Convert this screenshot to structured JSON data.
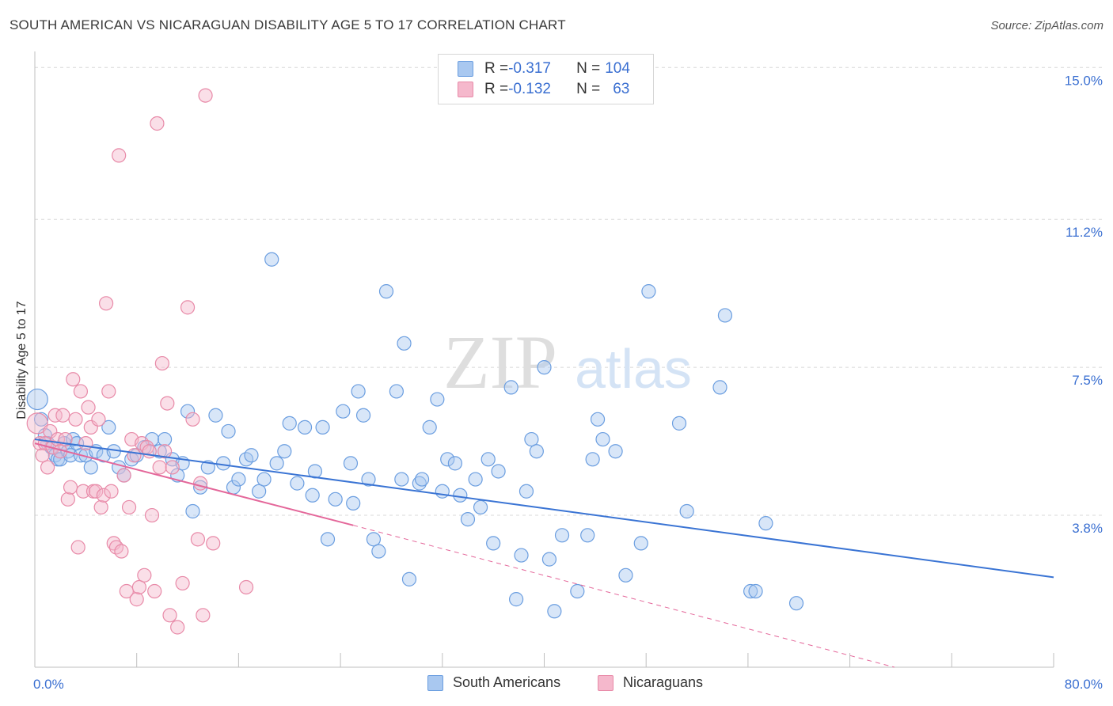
{
  "title": "SOUTH AMERICAN VS NICARAGUAN DISABILITY AGE 5 TO 17 CORRELATION CHART",
  "source": "Source: ZipAtlas.com",
  "watermark": {
    "zip": "ZIP",
    "atlas": "atlas"
  },
  "colors": {
    "blue_fill": "#a9c8f0",
    "blue_stroke": "#6b9ee0",
    "blue_line": "#3a74d4",
    "pink_fill": "#f5b8cc",
    "pink_stroke": "#e88aa8",
    "pink_line": "#e4679a",
    "tick_label": "#3a6fd1",
    "grid": "#d8d8d8"
  },
  "legend": {
    "rows": [
      {
        "r_label": "R = ",
        "r_value": "-0.317",
        "n_label": "N = ",
        "n_value": "104"
      },
      {
        "r_label": "R = ",
        "r_value": "-0.132",
        "n_label": "N = ",
        "n_value": "63"
      }
    ]
  },
  "bottom_legend": [
    "South Americans",
    "Nicaraguans"
  ],
  "chart_data": {
    "type": "scatter",
    "title": "SOUTH AMERICAN VS NICARAGUAN DISABILITY AGE 5 TO 17 CORRELATION CHART",
    "xlabel": "",
    "ylabel": "Disability Age 5 to 17",
    "xlim": [
      0,
      80
    ],
    "ylim": [
      0,
      15.5
    ],
    "x_tick_labels": [
      "0.0%",
      "80.0%"
    ],
    "y_tick_labels": [
      "3.8%",
      "7.5%",
      "11.2%",
      "15.0%"
    ],
    "y_ticks": [
      3.8,
      7.5,
      11.2,
      15.0
    ],
    "grid": true,
    "legend_position": "top-center",
    "series": [
      {
        "name": "South Americans",
        "points": [
          [
            0.2,
            6.7
          ],
          [
            0.5,
            6.2
          ],
          [
            0.8,
            5.8
          ],
          [
            1.0,
            5.6
          ],
          [
            1.3,
            5.5
          ],
          [
            1.6,
            5.3
          ],
          [
            1.8,
            5.2
          ],
          [
            2.0,
            5.2
          ],
          [
            2.3,
            5.6
          ],
          [
            2.6,
            5.4
          ],
          [
            2.8,
            5.3
          ],
          [
            3.0,
            5.7
          ],
          [
            3.3,
            5.6
          ],
          [
            3.6,
            5.3
          ],
          [
            4.0,
            5.3
          ],
          [
            4.4,
            5.0
          ],
          [
            4.8,
            5.4
          ],
          [
            5.4,
            5.3
          ],
          [
            5.8,
            6.0
          ],
          [
            6.2,
            5.4
          ],
          [
            6.6,
            5.0
          ],
          [
            7.0,
            4.8
          ],
          [
            7.6,
            5.2
          ],
          [
            8.0,
            5.3
          ],
          [
            8.6,
            5.5
          ],
          [
            9.2,
            5.7
          ],
          [
            9.8,
            5.4
          ],
          [
            10.2,
            5.7
          ],
          [
            10.8,
            5.2
          ],
          [
            11.2,
            4.8
          ],
          [
            11.6,
            5.1
          ],
          [
            12.0,
            6.4
          ],
          [
            12.4,
            3.9
          ],
          [
            13.0,
            4.5
          ],
          [
            13.6,
            5.0
          ],
          [
            14.2,
            6.3
          ],
          [
            14.8,
            5.1
          ],
          [
            15.2,
            5.9
          ],
          [
            15.6,
            4.5
          ],
          [
            16.0,
            4.7
          ],
          [
            16.6,
            5.2
          ],
          [
            17.0,
            5.3
          ],
          [
            17.6,
            4.4
          ],
          [
            18.0,
            4.7
          ],
          [
            18.6,
            10.2
          ],
          [
            19.0,
            5.1
          ],
          [
            19.6,
            5.4
          ],
          [
            20.0,
            6.1
          ],
          [
            20.6,
            4.6
          ],
          [
            21.2,
            6.0
          ],
          [
            21.8,
            4.3
          ],
          [
            22.0,
            4.9
          ],
          [
            22.6,
            6.0
          ],
          [
            23.0,
            3.2
          ],
          [
            23.6,
            4.2
          ],
          [
            24.2,
            6.4
          ],
          [
            24.8,
            5.1
          ],
          [
            25.0,
            4.1
          ],
          [
            25.4,
            6.9
          ],
          [
            25.8,
            6.3
          ],
          [
            26.2,
            4.7
          ],
          [
            26.6,
            3.2
          ],
          [
            27.0,
            2.9
          ],
          [
            27.6,
            9.4
          ],
          [
            28.4,
            6.9
          ],
          [
            28.8,
            4.7
          ],
          [
            29.0,
            8.1
          ],
          [
            29.4,
            2.2
          ],
          [
            30.2,
            4.6
          ],
          [
            30.4,
            4.7
          ],
          [
            31.0,
            6.0
          ],
          [
            31.6,
            6.7
          ],
          [
            32.0,
            4.4
          ],
          [
            32.4,
            5.2
          ],
          [
            33.0,
            5.1
          ],
          [
            33.4,
            4.3
          ],
          [
            34.0,
            3.7
          ],
          [
            34.6,
            4.7
          ],
          [
            35.0,
            4.0
          ],
          [
            35.6,
            5.2
          ],
          [
            36.0,
            3.1
          ],
          [
            36.4,
            4.9
          ],
          [
            37.4,
            7.0
          ],
          [
            37.8,
            1.7
          ],
          [
            38.2,
            2.8
          ],
          [
            38.6,
            4.4
          ],
          [
            39.0,
            5.7
          ],
          [
            39.4,
            5.4
          ],
          [
            40.0,
            7.5
          ],
          [
            40.4,
            2.7
          ],
          [
            40.8,
            1.4
          ],
          [
            41.4,
            3.3
          ],
          [
            42.6,
            1.9
          ],
          [
            43.4,
            3.3
          ],
          [
            43.8,
            5.2
          ],
          [
            44.2,
            6.2
          ],
          [
            44.6,
            5.7
          ],
          [
            45.6,
            5.4
          ],
          [
            46.4,
            2.3
          ],
          [
            47.6,
            3.1
          ],
          [
            48.2,
            9.4
          ],
          [
            50.6,
            6.1
          ],
          [
            51.2,
            3.9
          ],
          [
            53.8,
            7.0
          ],
          [
            54.2,
            8.8
          ],
          [
            56.2,
            1.9
          ],
          [
            56.6,
            1.9
          ],
          [
            57.4,
            3.6
          ],
          [
            59.8,
            1.6
          ]
        ],
        "trend": [
          [
            0,
            5.7
          ],
          [
            80,
            2.25
          ]
        ]
      },
      {
        "name": "Nicaraguans",
        "points": [
          [
            0.2,
            6.1
          ],
          [
            0.4,
            5.6
          ],
          [
            0.6,
            5.3
          ],
          [
            0.8,
            5.6
          ],
          [
            1.0,
            5.0
          ],
          [
            1.2,
            5.9
          ],
          [
            1.4,
            5.5
          ],
          [
            1.6,
            6.3
          ],
          [
            1.8,
            5.7
          ],
          [
            2.0,
            5.4
          ],
          [
            2.2,
            6.3
          ],
          [
            2.4,
            5.7
          ],
          [
            2.6,
            4.2
          ],
          [
            2.8,
            4.5
          ],
          [
            3.0,
            7.2
          ],
          [
            3.2,
            6.2
          ],
          [
            3.4,
            3.0
          ],
          [
            3.6,
            6.9
          ],
          [
            3.8,
            4.4
          ],
          [
            4.0,
            5.6
          ],
          [
            4.2,
            6.5
          ],
          [
            4.4,
            6.0
          ],
          [
            4.6,
            4.4
          ],
          [
            4.8,
            4.4
          ],
          [
            5.0,
            6.2
          ],
          [
            5.2,
            4.0
          ],
          [
            5.4,
            4.3
          ],
          [
            5.6,
            9.1
          ],
          [
            5.8,
            6.9
          ],
          [
            6.0,
            4.4
          ],
          [
            6.2,
            3.1
          ],
          [
            6.4,
            3.0
          ],
          [
            6.6,
            12.8
          ],
          [
            6.8,
            2.9
          ],
          [
            7.0,
            4.8
          ],
          [
            7.2,
            1.9
          ],
          [
            7.4,
            4.0
          ],
          [
            7.6,
            5.7
          ],
          [
            7.8,
            5.3
          ],
          [
            8.0,
            1.7
          ],
          [
            8.2,
            2.0
          ],
          [
            8.4,
            5.6
          ],
          [
            8.6,
            2.3
          ],
          [
            8.8,
            5.5
          ],
          [
            9.0,
            5.4
          ],
          [
            9.2,
            3.8
          ],
          [
            9.4,
            1.9
          ],
          [
            9.6,
            13.6
          ],
          [
            9.8,
            5.0
          ],
          [
            10.0,
            7.6
          ],
          [
            10.2,
            5.4
          ],
          [
            10.4,
            6.6
          ],
          [
            10.6,
            1.3
          ],
          [
            10.8,
            5.0
          ],
          [
            11.2,
            1.0
          ],
          [
            11.6,
            2.1
          ],
          [
            12.0,
            9.0
          ],
          [
            12.4,
            6.2
          ],
          [
            12.8,
            3.2
          ],
          [
            13.0,
            4.6
          ],
          [
            13.2,
            1.3
          ],
          [
            13.4,
            14.3
          ],
          [
            14.0,
            3.1
          ],
          [
            16.6,
            2.0
          ]
        ],
        "trend": [
          [
            0,
            5.6
          ],
          [
            25,
            3.55
          ]
        ],
        "trend_extension": [
          [
            25,
            3.55
          ],
          [
            67.5,
            0.0
          ]
        ]
      }
    ]
  }
}
